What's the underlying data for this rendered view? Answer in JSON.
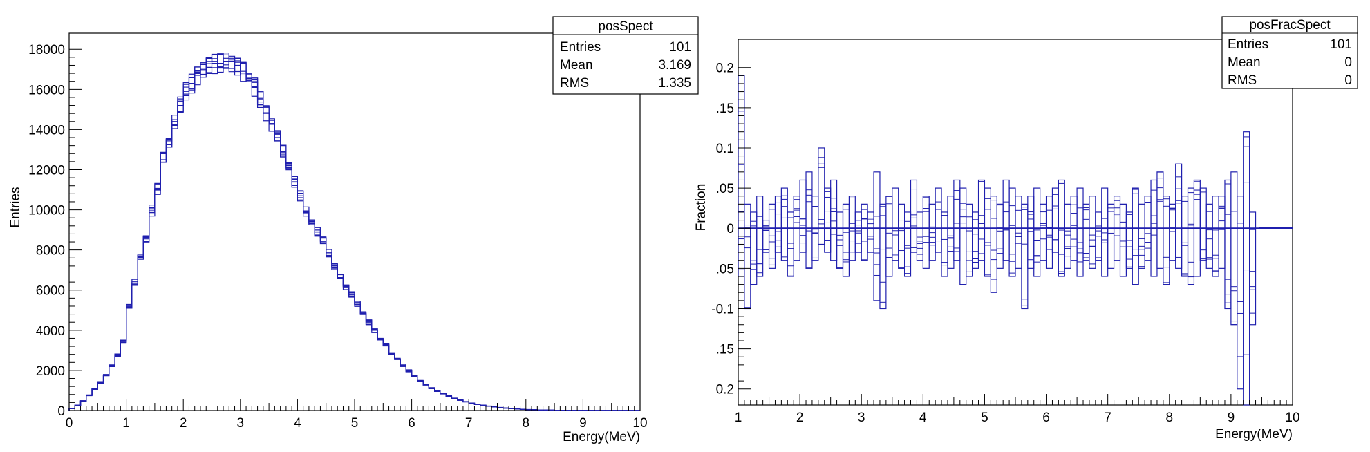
{
  "chart_data": [
    {
      "type": "histogram",
      "name": "posSpect",
      "xlabel": "Energy(MeV)",
      "ylabel": "Entries",
      "xlim": [
        0,
        10
      ],
      "ylim": [
        0,
        18800
      ],
      "x_ticks": [
        0,
        1,
        2,
        3,
        4,
        5,
        6,
        7,
        8,
        9,
        10
      ],
      "y_ticks": [
        0,
        2000,
        4000,
        6000,
        8000,
        10000,
        12000,
        14000,
        16000,
        18000
      ],
      "bin_width": 0.1,
      "overlaid_histograms": 101,
      "color": "#1f1fae",
      "stats": {
        "title": "posSpect",
        "rows": [
          {
            "label": "Entries",
            "value": "101"
          },
          {
            "label": "Mean",
            "value": "3.169"
          },
          {
            "label": "RMS",
            "value": "1.335"
          }
        ]
      },
      "x": [
        0.05,
        0.15,
        0.25,
        0.35,
        0.45,
        0.55,
        0.65,
        0.75,
        0.85,
        0.95,
        1.05,
        1.15,
        1.25,
        1.35,
        1.45,
        1.55,
        1.65,
        1.75,
        1.85,
        1.95,
        2.05,
        2.15,
        2.25,
        2.35,
        2.45,
        2.55,
        2.65,
        2.75,
        2.85,
        2.95,
        3.05,
        3.15,
        3.25,
        3.35,
        3.45,
        3.55,
        3.65,
        3.75,
        3.85,
        3.95,
        4.05,
        4.15,
        4.25,
        4.35,
        4.45,
        4.55,
        4.65,
        4.75,
        4.85,
        4.95,
        5.05,
        5.15,
        5.25,
        5.35,
        5.45,
        5.55,
        5.65,
        5.75,
        5.85,
        5.95,
        6.05,
        6.15,
        6.25,
        6.35,
        6.45,
        6.55,
        6.65,
        6.75,
        6.85,
        6.95,
        7.05,
        7.15,
        7.25,
        7.35,
        7.45,
        7.55,
        7.65,
        7.75,
        7.85,
        7.95,
        8.05,
        8.15,
        8.25,
        8.35,
        8.45,
        8.55,
        8.65,
        8.75,
        8.85,
        8.95,
        9.05,
        9.15,
        9.25,
        9.35,
        9.45,
        9.55,
        9.65,
        9.75,
        9.85,
        9.95
      ],
      "values": [
        100,
        260,
        480,
        760,
        1080,
        1400,
        1750,
        2250,
        2750,
        3450,
        5150,
        6350,
        7750,
        8550,
        9950,
        11000,
        12500,
        13500,
        14400,
        15200,
        15900,
        16300,
        16700,
        17000,
        17100,
        17300,
        17300,
        17400,
        17400,
        17200,
        16900,
        16600,
        16100,
        15500,
        14800,
        14300,
        13600,
        12900,
        12100,
        11400,
        10700,
        9900,
        9400,
        8900,
        8400,
        7800,
        7200,
        6700,
        6200,
        5800,
        5300,
        4800,
        4400,
        4000,
        3600,
        3250,
        2850,
        2550,
        2250,
        1980,
        1720,
        1480,
        1300,
        1120,
        980,
        850,
        720,
        610,
        520,
        440,
        370,
        310,
        260,
        220,
        180,
        150,
        120,
        100,
        80,
        60,
        50,
        40,
        30,
        25,
        20,
        15,
        10,
        8,
        6,
        5,
        4,
        3,
        2,
        1,
        1,
        0,
        0,
        0,
        0,
        0
      ],
      "spread_fraction": 0.03
    },
    {
      "type": "histogram",
      "name": "posFracSpect",
      "xlabel": "Energy(MeV)",
      "ylabel": "Fraction",
      "xlim": [
        1,
        10
      ],
      "ylim": [
        -0.22,
        0.235
      ],
      "x_ticks": [
        1,
        2,
        3,
        4,
        5,
        6,
        7,
        8,
        9,
        10
      ],
      "y_ticks": [
        -0.2,
        -0.15,
        -0.1,
        -0.05,
        0,
        0.05,
        0.1,
        0.15,
        0.2
      ],
      "y_tick_labels": [
        "0.2",
        ".15",
        "-0.1",
        ".05",
        "0",
        ".05",
        "0.1",
        ".15",
        "0.2"
      ],
      "bin_width": 0.1,
      "overlaid_histograms": 101,
      "color": "#1f1fae",
      "stats": {
        "title": "posFracSpect",
        "rows": [
          {
            "label": "Entries",
            "value": "101"
          },
          {
            "label": "Mean",
            "value": "0"
          },
          {
            "label": "RMS",
            "value": "0"
          }
        ]
      },
      "x": [
        1.05,
        1.15,
        1.25,
        1.35,
        1.45,
        1.55,
        1.65,
        1.75,
        1.85,
        1.95,
        2.05,
        2.15,
        2.25,
        2.35,
        2.45,
        2.55,
        2.65,
        2.75,
        2.85,
        2.95,
        3.05,
        3.15,
        3.25,
        3.35,
        3.45,
        3.55,
        3.65,
        3.75,
        3.85,
        3.95,
        4.05,
        4.15,
        4.25,
        4.35,
        4.45,
        4.55,
        4.65,
        4.75,
        4.85,
        4.95,
        5.05,
        5.15,
        5.25,
        5.35,
        5.45,
        5.55,
        5.65,
        5.75,
        5.85,
        5.95,
        6.05,
        6.15,
        6.25,
        6.35,
        6.45,
        6.55,
        6.65,
        6.75,
        6.85,
        6.95,
        7.05,
        7.15,
        7.25,
        7.35,
        7.45,
        7.55,
        7.65,
        7.75,
        7.85,
        7.95,
        8.05,
        8.15,
        8.25,
        8.35,
        8.45,
        8.55,
        8.65,
        8.75,
        8.85,
        8.95,
        9.05,
        9.15,
        9.25,
        9.35
      ],
      "max_values": [
        0.19,
        0.03,
        0.02,
        0.04,
        0.01,
        0.03,
        0.04,
        0.05,
        0.02,
        0.04,
        0.06,
        0.07,
        0.04,
        0.1,
        0.05,
        0.06,
        0.02,
        0.03,
        0.04,
        0.02,
        0.03,
        0.02,
        0.07,
        0.03,
        0.04,
        0.05,
        0.03,
        0.02,
        0.06,
        0.02,
        0.04,
        0.03,
        0.05,
        0.02,
        0.04,
        0.06,
        0.05,
        0.03,
        0.02,
        0.06,
        0.05,
        0.04,
        0.03,
        0.06,
        0.05,
        0.04,
        0.03,
        0.04,
        0.05,
        0.03,
        0.04,
        0.05,
        0.06,
        0.03,
        0.04,
        0.05,
        0.03,
        0.04,
        0.02,
        0.05,
        0.03,
        0.04,
        0.03,
        0.02,
        0.05,
        0.03,
        0.04,
        0.06,
        0.07,
        0.04,
        0.03,
        0.08,
        0.04,
        0.05,
        0.06,
        0.05,
        0.03,
        0.04,
        0.04,
        0.06,
        0.07,
        0.04,
        0.12,
        0.02
      ],
      "min_values": [
        -0.06,
        -0.1,
        -0.07,
        -0.06,
        -0.03,
        -0.05,
        -0.03,
        -0.04,
        -0.06,
        -0.04,
        -0.03,
        -0.05,
        -0.04,
        -0.02,
        -0.03,
        -0.04,
        -0.05,
        -0.06,
        -0.04,
        -0.03,
        -0.04,
        -0.03,
        -0.09,
        -0.1,
        -0.06,
        -0.04,
        -0.05,
        -0.06,
        -0.03,
        -0.04,
        -0.05,
        -0.04,
        -0.03,
        -0.06,
        -0.05,
        -0.04,
        -0.07,
        -0.06,
        -0.05,
        -0.04,
        -0.06,
        -0.08,
        -0.05,
        -0.04,
        -0.06,
        -0.05,
        -0.1,
        -0.05,
        -0.06,
        -0.04,
        -0.05,
        -0.03,
        -0.06,
        -0.05,
        -0.04,
        -0.06,
        -0.04,
        -0.05,
        -0.04,
        -0.06,
        -0.05,
        -0.04,
        -0.06,
        -0.05,
        -0.07,
        -0.05,
        -0.04,
        -0.06,
        -0.05,
        -0.07,
        -0.04,
        -0.05,
        -0.06,
        -0.07,
        -0.06,
        -0.04,
        -0.05,
        -0.06,
        -0.05,
        -0.1,
        -0.12,
        -0.2,
        -0.22,
        -0.12
      ],
      "tail_x": [
        9.45,
        10
      ],
      "tail_value": 0
    }
  ]
}
